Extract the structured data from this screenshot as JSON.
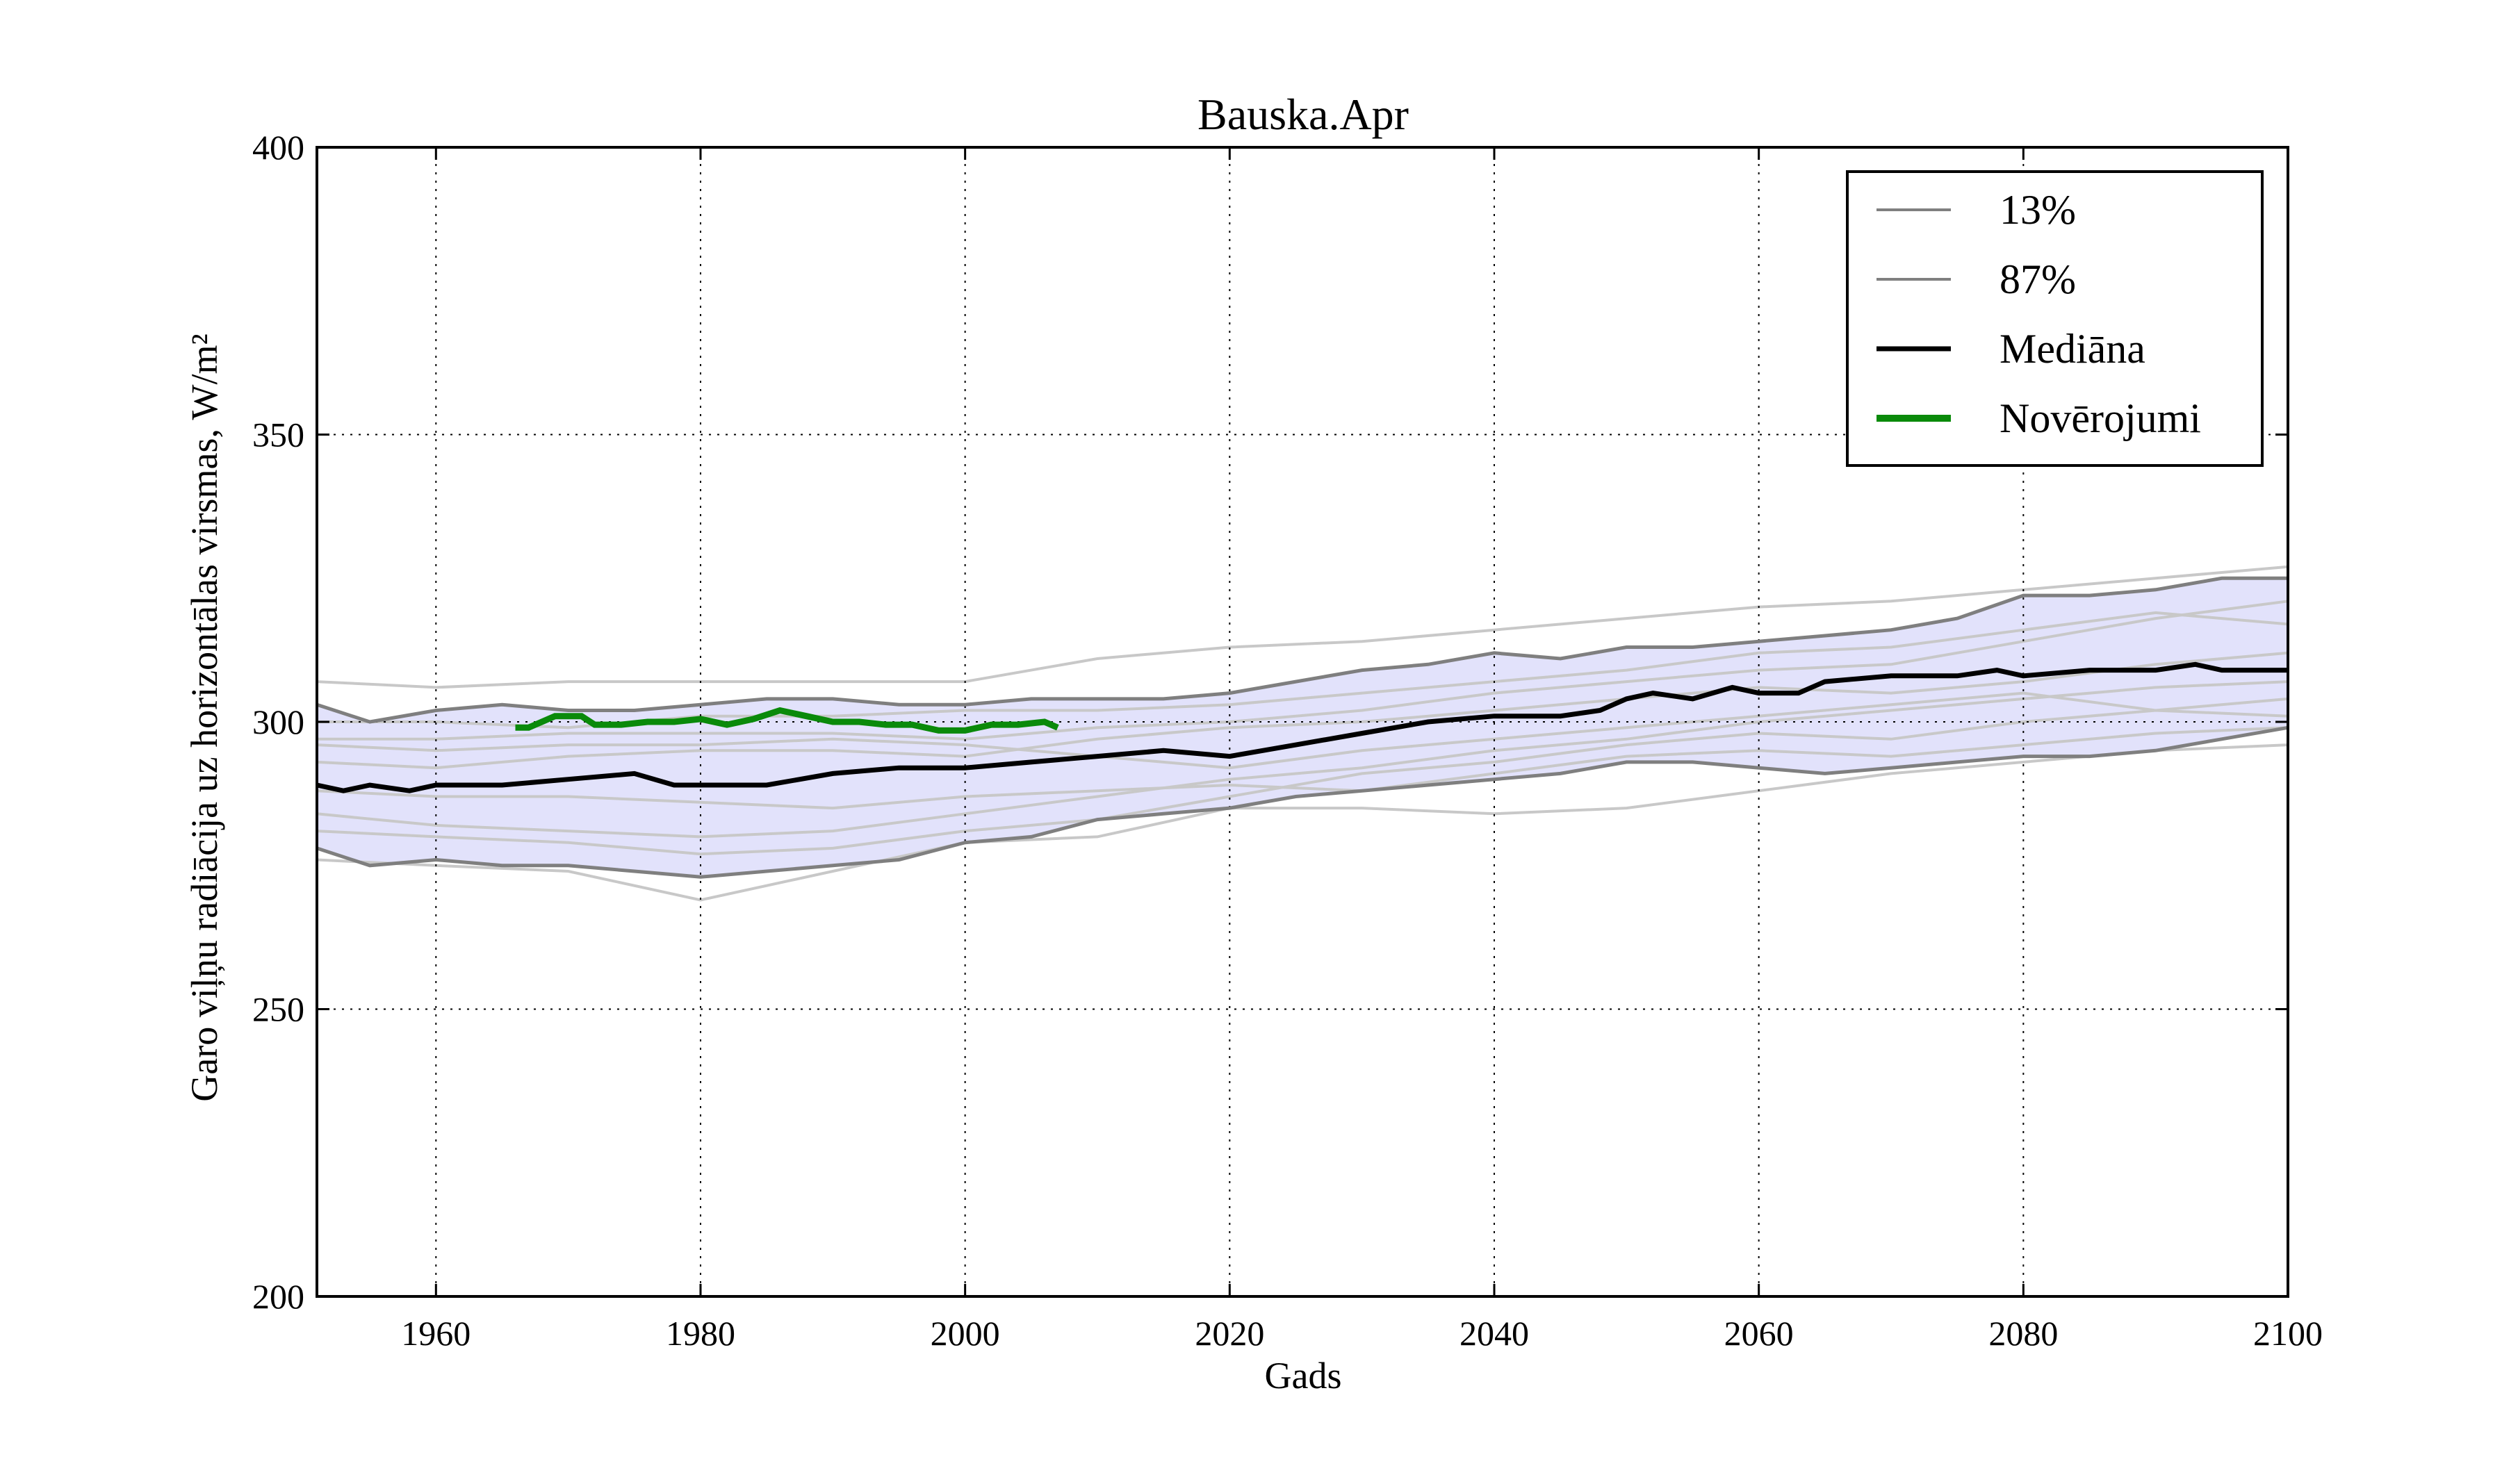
{
  "chart_data": {
    "type": "line",
    "title": "Bauska.Apr",
    "xlabel": "Gads",
    "ylabel": "Garo viļņu radiācija uz horizontālas virsmas, W/m²",
    "xlim": [
      1951,
      2100
    ],
    "ylim": [
      200,
      400
    ],
    "xticks": [
      1960,
      1980,
      2000,
      2020,
      2040,
      2060,
      2080,
      2100
    ],
    "yticks": [
      200,
      250,
      300,
      350,
      400
    ],
    "grid": true,
    "legend_position": "top-right",
    "colors": {
      "band_fill": "#e2e2fb",
      "percentile": "#7f7f7f",
      "ensemble": "#c8c8c8",
      "median": "#000000",
      "observations": "#0a8a0a"
    },
    "series": [
      {
        "name": "13%",
        "x": [
          1951,
          1955,
          1960,
          1965,
          1970,
          1975,
          1980,
          1985,
          1990,
          1995,
          2000,
          2005,
          2010,
          2015,
          2020,
          2025,
          2030,
          2035,
          2040,
          2045,
          2050,
          2055,
          2060,
          2065,
          2070,
          2075,
          2080,
          2085,
          2090,
          2095,
          2100
        ],
        "values": [
          278,
          275,
          276,
          275,
          275,
          274,
          273,
          274,
          275,
          276,
          279,
          280,
          283,
          284,
          285,
          287,
          288,
          289,
          290,
          291,
          293,
          293,
          292,
          291,
          292,
          293,
          294,
          294,
          295,
          297,
          299
        ]
      },
      {
        "name": "87%",
        "x": [
          1951,
          1955,
          1960,
          1965,
          1970,
          1975,
          1980,
          1985,
          1990,
          1995,
          2000,
          2005,
          2010,
          2015,
          2020,
          2025,
          2030,
          2035,
          2040,
          2045,
          2050,
          2055,
          2060,
          2065,
          2070,
          2075,
          2080,
          2085,
          2090,
          2095,
          2100
        ],
        "values": [
          303,
          300,
          302,
          303,
          302,
          302,
          303,
          304,
          304,
          303,
          303,
          304,
          304,
          304,
          305,
          307,
          309,
          310,
          312,
          311,
          313,
          313,
          314,
          315,
          316,
          318,
          322,
          322,
          323,
          325,
          325
        ]
      },
      {
        "name": "Mediāna",
        "x": [
          1951,
          1953,
          1955,
          1958,
          1960,
          1965,
          1970,
          1975,
          1978,
          1980,
          1985,
          1990,
          1995,
          2000,
          2005,
          2010,
          2015,
          2020,
          2025,
          2030,
          2035,
          2040,
          2045,
          2048,
          2050,
          2052,
          2055,
          2058,
          2060,
          2063,
          2065,
          2070,
          2075,
          2078,
          2080,
          2085,
          2090,
          2093,
          2095,
          2100
        ],
        "values": [
          289,
          288,
          289,
          288,
          289,
          289,
          290,
          291,
          289,
          289,
          289,
          291,
          292,
          292,
          293,
          294,
          295,
          294,
          296,
          298,
          300,
          301,
          301,
          302,
          304,
          305,
          304,
          306,
          305,
          305,
          307,
          308,
          308,
          309,
          308,
          309,
          309,
          310,
          309,
          309
        ]
      },
      {
        "name": "Novērojumi",
        "x": [
          1966,
          1967,
          1969,
          1971,
          1972,
          1974,
          1976,
          1978,
          1980,
          1982,
          1984,
          1986,
          1988,
          1990,
          1992,
          1994,
          1996,
          1998,
          2000,
          2002,
          2004,
          2006,
          2007
        ],
        "values": [
          299,
          299,
          301,
          301,
          299.5,
          299.5,
          300,
          300,
          300.5,
          299.5,
          300.5,
          302,
          301,
          300,
          300,
          299.5,
          299.5,
          298.5,
          298.5,
          299.5,
          299.5,
          300,
          299
        ]
      }
    ],
    "ensemble_members": [
      {
        "x": [
          1951,
          1960,
          1970,
          1980,
          1990,
          2000,
          2010,
          2020,
          2030,
          2040,
          2050,
          2060,
          2070,
          2080,
          2090,
          2100
        ],
        "values": [
          307,
          306,
          307,
          307,
          307,
          307,
          311,
          313,
          314,
          316,
          318,
          320,
          321,
          323,
          325,
          327
        ]
      },
      {
        "x": [
          1951,
          1960,
          1970,
          1980,
          1990,
          2000,
          2010,
          2020,
          2030,
          2040,
          2050,
          2060,
          2070,
          2080,
          2090,
          2100
        ],
        "values": [
          276,
          275,
          274,
          269,
          274,
          279,
          280,
          285,
          285,
          284,
          285,
          288,
          291,
          293,
          295,
          296
        ]
      },
      {
        "x": [
          1951,
          1960,
          1970,
          1980,
          1990,
          2000,
          2010,
          2020,
          2030,
          2040,
          2050,
          2060,
          2070,
          2080,
          2090,
          2100
        ],
        "values": [
          297,
          297,
          298,
          298,
          298,
          297,
          299,
          300,
          302,
          305,
          307,
          309,
          310,
          314,
          318,
          321
        ]
      },
      {
        "x": [
          1951,
          1960,
          1970,
          1980,
          1990,
          2000,
          2010,
          2020,
          2030,
          2040,
          2050,
          2060,
          2070,
          2080,
          2090,
          2100
        ],
        "values": [
          284,
          282,
          281,
          280,
          281,
          284,
          287,
          290,
          292,
          295,
          297,
          300,
          302,
          304,
          306,
          307
        ]
      },
      {
        "x": [
          1951,
          1960,
          1970,
          1980,
          1990,
          2000,
          2010,
          2020,
          2030,
          2040,
          2050,
          2060,
          2070,
          2080,
          2090,
          2100
        ],
        "values": [
          293,
          292,
          294,
          295,
          295,
          294,
          297,
          299,
          300,
          302,
          304,
          306,
          305,
          307,
          310,
          312
        ]
      },
      {
        "x": [
          1951,
          1960,
          1970,
          1980,
          1990,
          2000,
          2010,
          2020,
          2030,
          2040,
          2050,
          2060,
          2070,
          2080,
          2090,
          2100
        ],
        "values": [
          296,
          295,
          296,
          296,
          297,
          296,
          294,
          292,
          295,
          297,
          299,
          301,
          303,
          305,
          302,
          304
        ]
      },
      {
        "x": [
          1951,
          1960,
          1970,
          1980,
          1990,
          2000,
          2010,
          2020,
          2030,
          2040,
          2050,
          2060,
          2070,
          2080,
          2090,
          2100
        ],
        "values": [
          281,
          280,
          279,
          277,
          278,
          281,
          283,
          287,
          291,
          293,
          296,
          298,
          297,
          300,
          302,
          301
        ]
      },
      {
        "x": [
          1951,
          1960,
          1970,
          1980,
          1990,
          2000,
          2010,
          2020,
          2030,
          2040,
          2050,
          2060,
          2070,
          2080,
          2090,
          2100
        ],
        "values": [
          300,
          300,
          299,
          301,
          301,
          302,
          302,
          303,
          305,
          307,
          309,
          312,
          313,
          316,
          319,
          317
        ]
      },
      {
        "x": [
          1951,
          1960,
          1970,
          1980,
          1990,
          2000,
          2010,
          2020,
          2030,
          2040,
          2050,
          2060,
          2070,
          2080,
          2090,
          2100
        ],
        "values": [
          288,
          287,
          287,
          286,
          285,
          287,
          288,
          289,
          288,
          291,
          294,
          295,
          294,
          296,
          298,
          299
        ]
      }
    ]
  }
}
